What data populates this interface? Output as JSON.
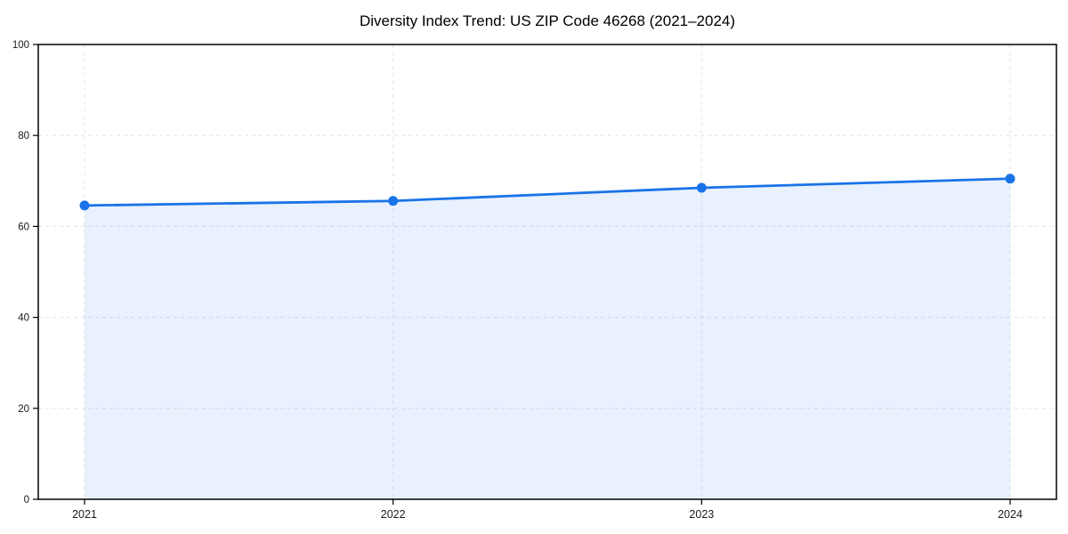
{
  "chart_data": {
    "type": "area",
    "title": "Diversity Index Trend: US ZIP Code 46268 (2021–2024)",
    "x": [
      "2021",
      "2022",
      "2023",
      "2024"
    ],
    "series": [
      {
        "name": "Diversity Index",
        "values": [
          64.6,
          65.6,
          68.5,
          70.5
        ]
      }
    ],
    "xlabel": "",
    "ylabel": "",
    "ylim": [
      0,
      100
    ],
    "yticks": [
      0,
      20,
      40,
      60,
      80,
      100
    ],
    "grid": true,
    "grid_style": "dashed",
    "legend": "none",
    "colors": {
      "line": "#1a73e8",
      "marker": "#1a73e8",
      "fill": "#1a73e8",
      "fill_opacity": 0.1,
      "grid": "#e4e4e4",
      "axis": "#000000",
      "tick_text": "#1a1a1a",
      "title_text": "#000000",
      "background": "#ffffff"
    }
  }
}
